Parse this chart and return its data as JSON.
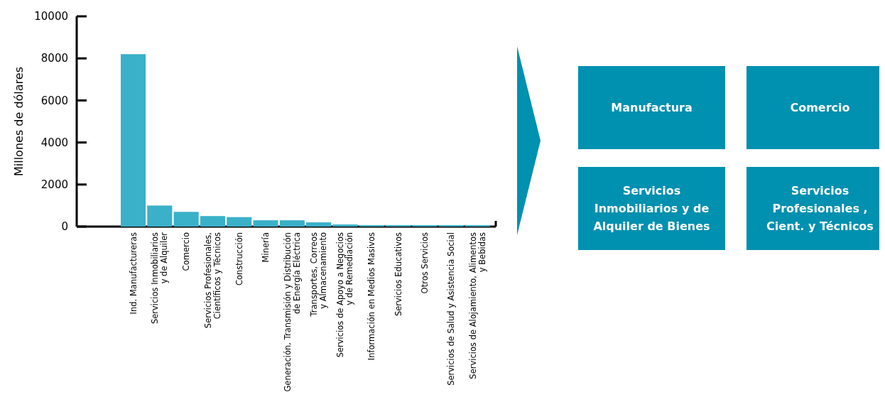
{
  "chart_data": [
    {
      "type": "bar",
      "ylabel": "Millones de dólares",
      "categories": [
        "Ind. Manufactureras",
        "Servicios Inmobiliarios\ny de Alquiler",
        "Comercio",
        "Servicios Profesionales,\nCientíficos y Técnicos",
        "Construcción",
        "Minería",
        "Generación, Transmisión y Distribución\nde Energía Eléctrica",
        "Transportes, Correos\ny Almacenamiento",
        "Servicios de Apoyo a Negocios\ny de Remediación",
        "Información en Medios Masivos",
        "Servicios Educativos",
        "Otros Servicios",
        "Servicios de Salud y Asistencia Social",
        "Servicios de Alojamiento, Alimentos\ny Bebidas"
      ],
      "values": [
        8200,
        1000,
        700,
        500,
        450,
        300,
        300,
        200,
        100,
        70,
        70,
        70,
        70,
        70
      ],
      "color": "#3ab0c9",
      "ylim": [
        0,
        10000
      ],
      "yticks": [
        0,
        2000,
        4000,
        6000,
        8000,
        10000
      ]
    },
    {
      "type": "other",
      "color": "#0090b0",
      "annotations": [
        "Manufactura",
        "Comercio",
        "Servicios\nInmobiliarios y de\nAlquiler de Bienes",
        "Servicios\nProfesionales ,\nCient. y Técnicos"
      ]
    }
  ]
}
